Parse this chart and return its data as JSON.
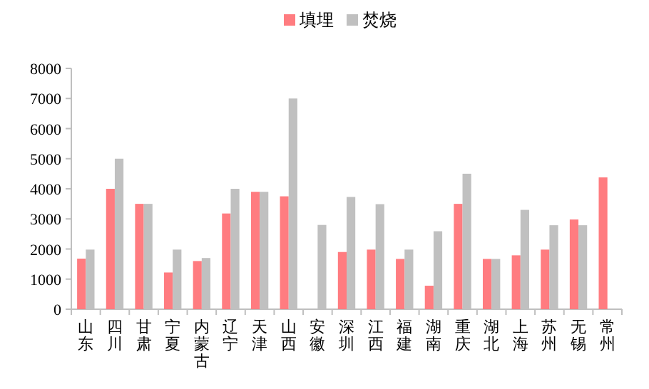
{
  "chart_data": {
    "type": "bar",
    "categories": [
      "山东",
      "四川",
      "甘肃",
      "宁夏",
      "内蒙古",
      "辽宁",
      "天津",
      "山西",
      "安徽",
      "深圳",
      "江西",
      "福建",
      "湖南",
      "重庆",
      "湖北",
      "上海",
      "苏州",
      "无锡",
      "常州"
    ],
    "series": [
      {
        "name": "填埋",
        "color": "#ff7c80",
        "values": [
          1680,
          4000,
          3500,
          1220,
          1600,
          3180,
          3900,
          3750,
          null,
          1900,
          1980,
          1670,
          780,
          3500,
          1670,
          1790,
          1980,
          2980,
          4380
        ]
      },
      {
        "name": "焚烧",
        "color": "#c0c0c0",
        "values": [
          1980,
          5000,
          3500,
          1980,
          1700,
          4000,
          3900,
          7000,
          2800,
          3730,
          3490,
          1980,
          2590,
          4500,
          1670,
          3300,
          2790,
          2790,
          null
        ]
      }
    ],
    "ylim": [
      0,
      8000
    ],
    "yticks": [
      0,
      1000,
      2000,
      3000,
      4000,
      5000,
      6000,
      7000,
      8000
    ],
    "grid": false,
    "legend": "top"
  }
}
